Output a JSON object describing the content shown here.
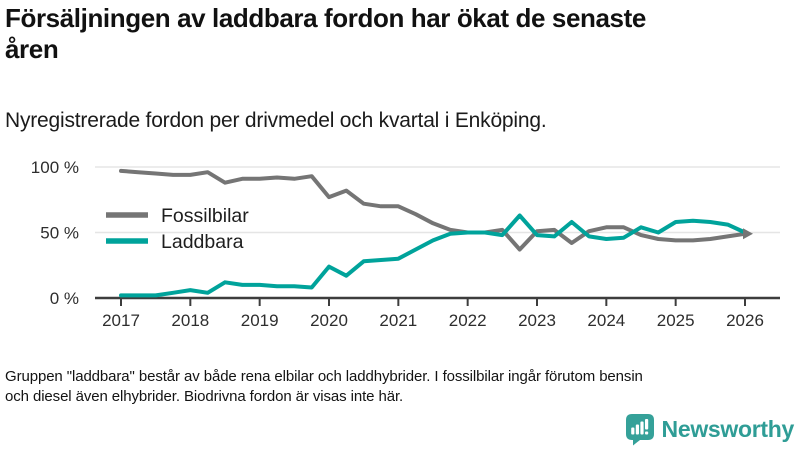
{
  "header": {
    "title": "Försäljningen av laddbara fordon har ökat de senaste åren",
    "title_lines": [
      "Försäljningen av laddbara fordon har ökat de senaste",
      "åren"
    ],
    "subtitle": "Nyregistrerade fordon per drivmedel och kvartal i Enköping."
  },
  "chart_data": {
    "type": "line",
    "title": "Försäljningen av laddbara fordon har ökat de senaste åren",
    "subtitle": "Nyregistrerade fordon per drivmedel och kvartal i Enköping.",
    "unit": "%",
    "x": [
      "2017Q1",
      "2017Q2",
      "2017Q3",
      "2017Q4",
      "2018Q1",
      "2018Q2",
      "2018Q3",
      "2018Q4",
      "2019Q1",
      "2019Q2",
      "2019Q3",
      "2019Q4",
      "2020Q1",
      "2020Q2",
      "2020Q3",
      "2020Q4",
      "2021Q1",
      "2021Q2",
      "2021Q3",
      "2021Q4",
      "2022Q1",
      "2022Q2",
      "2022Q3",
      "2022Q4",
      "2023Q1",
      "2023Q2",
      "2023Q3",
      "2023Q4",
      "2024Q1",
      "2024Q2",
      "2024Q3",
      "2024Q4",
      "2025Q1",
      "2025Q2",
      "2025Q3",
      "2025Q4",
      "2026Q1"
    ],
    "x_ticks": [
      "2017",
      "2018",
      "2019",
      "2020",
      "2021",
      "2022",
      "2023",
      "2024",
      "2025",
      "2026"
    ],
    "y_ticks": [
      {
        "label": "0 %",
        "value": 0
      },
      {
        "label": "50 %",
        "value": 50
      },
      {
        "label": "100 %",
        "value": 100
      }
    ],
    "ylim": [
      0,
      100
    ],
    "grid": true,
    "legend_position": "inside-top-left",
    "end_marker": "arrow",
    "series": [
      {
        "name": "Fossilbilar",
        "color": "#757575",
        "values": [
          97,
          96,
          95,
          94,
          94,
          96,
          88,
          91,
          91,
          92,
          91,
          93,
          77,
          82,
          72,
          70,
          70,
          64,
          57,
          52,
          50,
          50,
          52,
          37,
          51,
          52,
          42,
          51,
          54,
          54,
          48,
          45,
          44,
          44,
          45,
          47,
          49
        ]
      },
      {
        "name": "Laddbara",
        "color": "#00a39b",
        "values": [
          2,
          2,
          2,
          4,
          6,
          4,
          12,
          10,
          10,
          9,
          9,
          8,
          24,
          17,
          28,
          29,
          30,
          37,
          44,
          49,
          50,
          50,
          48,
          63,
          48,
          47,
          58,
          47,
          45,
          46,
          54,
          50,
          58,
          59,
          58,
          56,
          50
        ]
      }
    ]
  },
  "footer": {
    "note": "Gruppen \"laddbara\" består av både rena elbilar och laddhybrider. I fossilbilar ingår förutom bensin och diesel även elhybrider. Biodrivna fordon är visas inte här.",
    "note_lines": [
      "Gruppen \"laddbara\" består av både rena elbilar och laddhybrider. I fossilbilar ingår förutom bensin",
      "och diesel även elhybrider. Biodrivna fordon är visas inte här."
    ],
    "brand": "Newsworthy"
  },
  "colors": {
    "fossil_line": "#757575",
    "laddbara_line": "#00a39b",
    "gridline": "#e5e5e5",
    "axis": "#3d3d3d",
    "tick_label": "#2e2e2e",
    "logo_teal": "#35a199",
    "background": "#ffffff"
  }
}
